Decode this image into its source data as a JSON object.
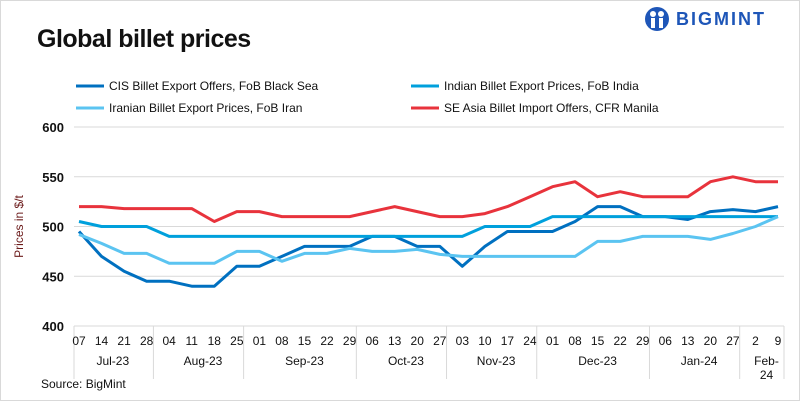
{
  "title": "Global billet prices",
  "logo": {
    "text": "BIGMINT",
    "color": "#1e56b8"
  },
  "source": "Source: BigMint",
  "chart_data": {
    "type": "line",
    "title": "Global billet prices",
    "ylabel": "Prices in $/t",
    "xlabel": "",
    "ylim": [
      400,
      600
    ],
    "yticks": [
      400,
      450,
      500,
      550,
      600
    ],
    "grid": true,
    "legend": "top",
    "x": [
      "07",
      "14",
      "21",
      "28",
      "04",
      "11",
      "18",
      "25",
      "01",
      "08",
      "15",
      "22",
      "29",
      "06",
      "13",
      "20",
      "27",
      "03",
      "10",
      "17",
      "24",
      "01",
      "08",
      "15",
      "22",
      "29",
      "06",
      "13",
      "20",
      "27",
      "2",
      "9"
    ],
    "months": [
      {
        "label": "Jul-23",
        "count": 4
      },
      {
        "label": "Aug-23",
        "count": 4
      },
      {
        "label": "Sep-23",
        "count": 5
      },
      {
        "label": "Oct-23",
        "count": 4
      },
      {
        "label": "Nov-23",
        "count": 4
      },
      {
        "label": "Dec-23",
        "count": 5
      },
      {
        "label": "Jan-24",
        "count": 4
      },
      {
        "label": "Feb-24",
        "count": 2
      }
    ],
    "series": [
      {
        "name": "CIS Billet Export Offers, FoB Black Sea",
        "color": "#0070c0",
        "values": [
          495,
          470,
          455,
          445,
          445,
          440,
          440,
          460,
          460,
          470,
          480,
          480,
          480,
          490,
          490,
          480,
          480,
          460,
          480,
          495,
          495,
          495,
          505,
          520,
          520,
          510,
          510,
          507,
          515,
          517,
          515,
          520
        ]
      },
      {
        "name": "Indian Billet Export Prices, FoB India",
        "color": "#00a0dc",
        "values": [
          505,
          500,
          500,
          500,
          490,
          490,
          490,
          490,
          490,
          490,
          490,
          490,
          490,
          490,
          490,
          490,
          490,
          490,
          500,
          500,
          500,
          510,
          510,
          510,
          510,
          510,
          510,
          510,
          510,
          510,
          510,
          510
        ]
      },
      {
        "name": "Iranian Billet Export Prices, FoB Iran",
        "color": "#5bc4f1",
        "values": [
          492,
          483,
          473,
          473,
          463,
          463,
          463,
          475,
          475,
          465,
          473,
          473,
          478,
          475,
          475,
          477,
          472,
          470,
          470,
          470,
          470,
          470,
          470,
          485,
          485,
          490,
          490,
          490,
          487,
          493,
          500,
          510
        ]
      },
      {
        "name": "SE Asia Billet Import Offers, CFR Manila",
        "color": "#e8333c",
        "values": [
          520,
          520,
          518,
          518,
          518,
          518,
          505,
          515,
          515,
          510,
          510,
          510,
          510,
          515,
          520,
          515,
          510,
          510,
          513,
          520,
          530,
          540,
          545,
          530,
          535,
          530,
          530,
          530,
          545,
          550,
          545,
          545
        ]
      }
    ]
  }
}
